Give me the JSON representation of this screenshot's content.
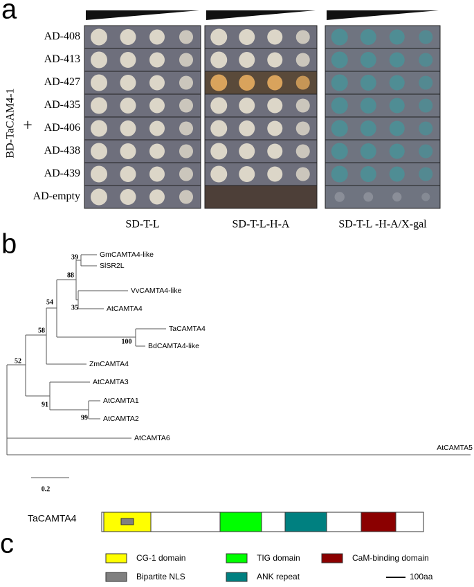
{
  "panel_a": {
    "label": "a",
    "y_label": "BD-TaCAM4-1",
    "plus": "+",
    "rows": [
      "AD-408",
      "AD-413",
      "AD-427",
      "AD-435",
      "AD-406",
      "AD-438",
      "AD-439",
      "AD-empty"
    ],
    "columns": [
      "SD-T-L",
      "SD-T-L-H-A",
      "SD-T-L -H-A/X-gal"
    ]
  },
  "panel_b": {
    "label": "b",
    "taxa": [
      "GmCAMTA4-like",
      "SlSR2L",
      "VvCAMTA4-like",
      "AtCAMTA4",
      "TaCAMTA4",
      "BdCAMTA4-like",
      "ZmCAMTA4",
      "AtCAMTA3",
      "AtCAMTA1",
      "AtCAMTA2",
      "AtCAMTA6",
      "AtCAMTA5"
    ],
    "bootstrap": [
      39,
      88,
      35,
      54,
      100,
      58,
      52,
      91,
      99
    ],
    "scale": 0.2
  },
  "panel_c": {
    "label": "c",
    "protein": "TaCAMTA4",
    "legend": [
      "CG-1 domain",
      "TIG domain",
      "CaM-binding domain",
      "Bipartite NLS",
      "ANK repeat",
      "100aa"
    ]
  }
}
